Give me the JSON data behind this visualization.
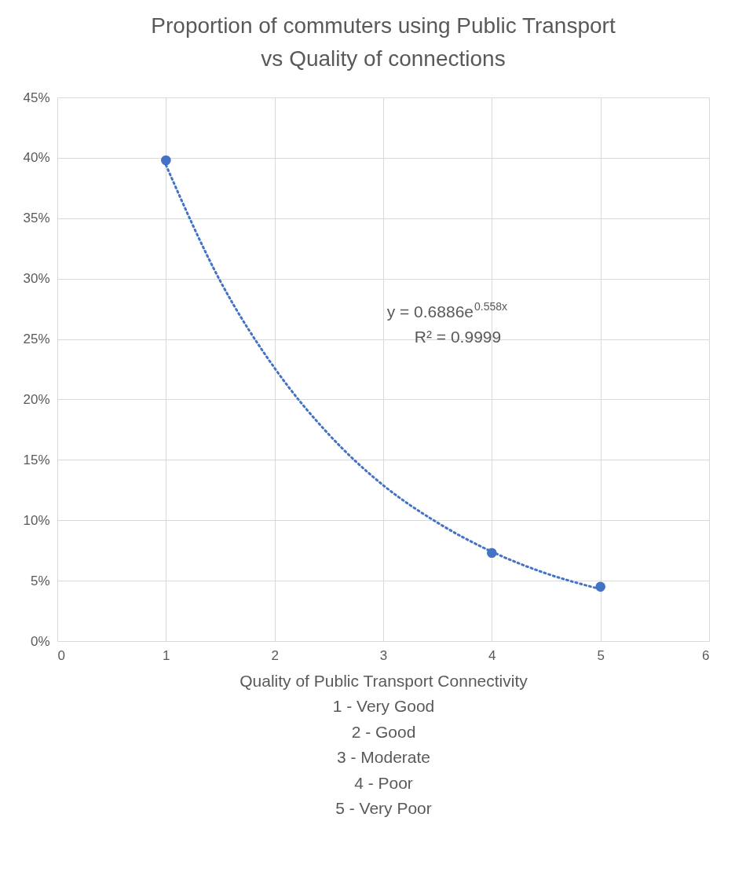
{
  "chart_data": {
    "type": "scatter",
    "title": "Proportion of commuters using Public Transport vs Quality of connections",
    "xlabel": "Quality of  Public Transport Connectivity\n1 - Very Good\n2 - Good\n3 - Moderate\n4 - Poor\n5 - Very Poor",
    "series": [
      {
        "type": "scatter",
        "color": "#4472c4",
        "marker": "circle",
        "x": [
          1,
          4,
          5
        ],
        "values": [
          39.8,
          7.3,
          4.5
        ]
      },
      {
        "type": "line",
        "color": "#4472c4",
        "line_style": "dotted",
        "marker": "none",
        "x": [
          1,
          1.5,
          2,
          2.5,
          3,
          3.5,
          4,
          4.5,
          5
        ],
        "values": [
          39.4,
          29.8,
          22.6,
          17.1,
          12.9,
          9.8,
          7.4,
          5.6,
          4.3
        ]
      }
    ],
    "xlim": [
      0,
      6
    ],
    "xticks": [
      0,
      1,
      2,
      3,
      4,
      5,
      6
    ],
    "ylim": [
      0,
      45
    ],
    "yticks": [
      {
        "value": 0,
        "label": "0%"
      },
      {
        "value": 5,
        "label": "5%"
      },
      {
        "value": 10,
        "label": "10%"
      },
      {
        "value": 15,
        "label": "15%"
      },
      {
        "value": 20,
        "label": "20%"
      },
      {
        "value": 25,
        "label": "25%"
      },
      {
        "value": 30,
        "label": "30%"
      },
      {
        "value": 35,
        "label": "35%"
      },
      {
        "value": 40,
        "label": "40%"
      },
      {
        "value": 45,
        "label": "45%"
      }
    ],
    "annotations": [
      "y = 0.6886e$^{0.558x}$",
      "R² = 0.9999"
    ],
    "grid": true
  }
}
